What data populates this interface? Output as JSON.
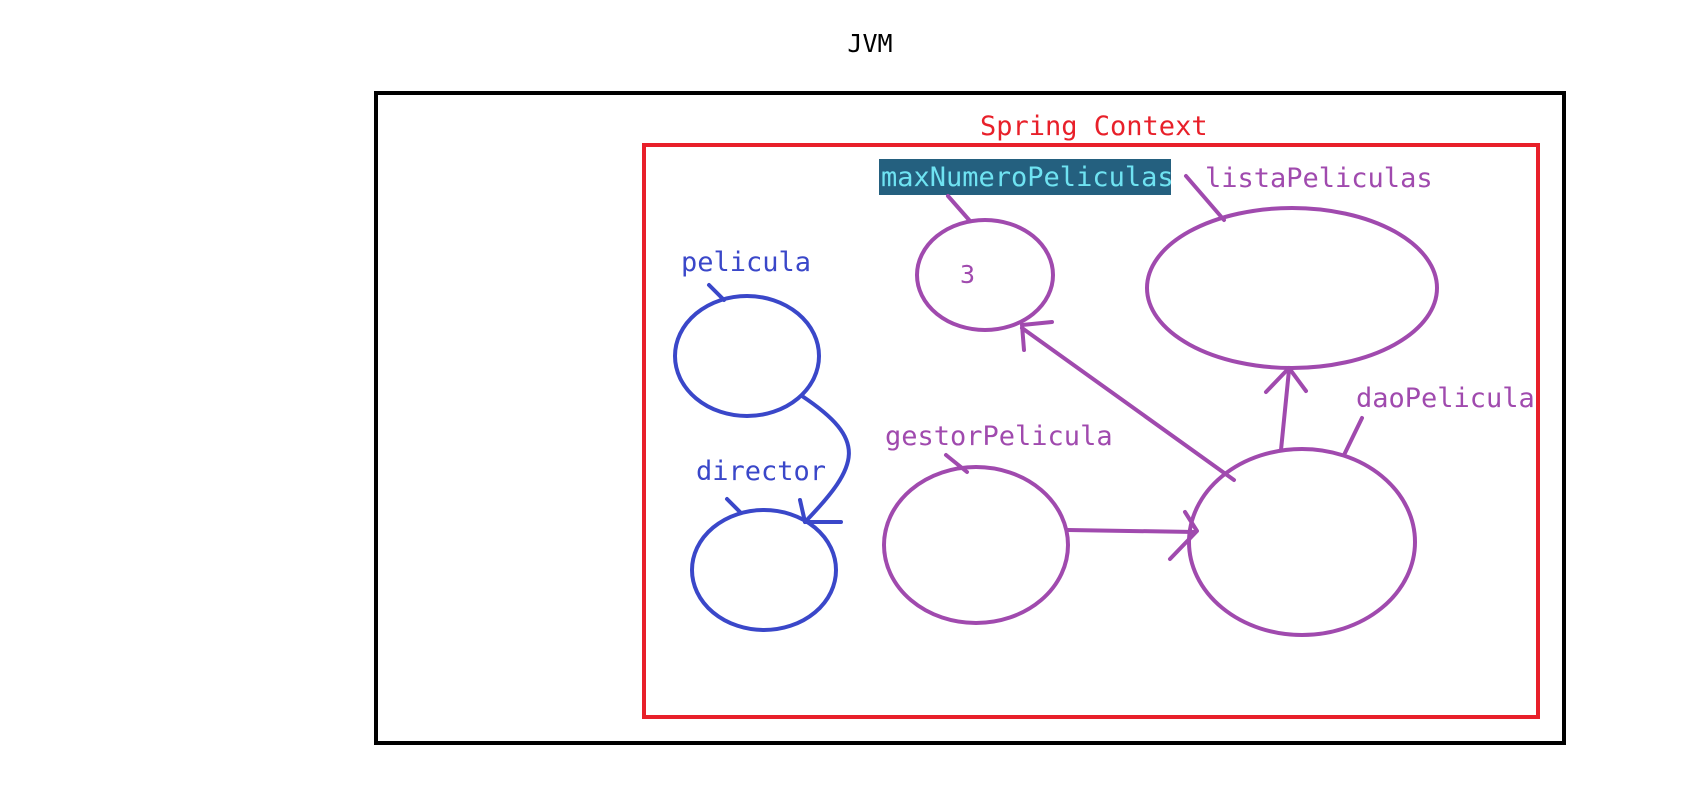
{
  "jvm": {
    "label": "JVM"
  },
  "spring_context": {
    "label": "Spring Context"
  },
  "beans": {
    "pelicula": {
      "name": "pelicula"
    },
    "director": {
      "name": "director"
    },
    "max_numero_peliculas": {
      "name": "maxNumeroPeliculas",
      "value": "3"
    },
    "lista_peliculas": {
      "name": "listaPeliculas"
    },
    "gestor_pelicula": {
      "name": "gestorPelicula"
    },
    "dao_pelicula": {
      "name": "daoPelicula"
    }
  },
  "colors": {
    "jvm_border": "#000000",
    "context_border": "#e8202a",
    "standalone_beans": "#3a47c9",
    "context_beans": "#a04aae",
    "highlight_bg": "#24607f",
    "highlight_text": "#6fe3f2"
  }
}
